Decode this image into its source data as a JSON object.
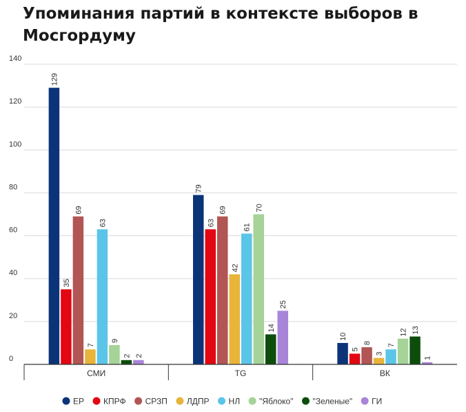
{
  "chart_data": {
    "type": "bar",
    "title": "Упоминания партий в контексте выборов в Мосгордуму",
    "xlabel": "",
    "ylabel": "",
    "ylim": [
      0,
      140
    ],
    "yticks": [
      "0",
      "20",
      "40",
      "60",
      "80",
      "100",
      "120",
      "140"
    ],
    "grid": true,
    "legend_position": "bottom",
    "categories": [
      "СМИ",
      "TG",
      "ВК"
    ],
    "series": [
      {
        "name": "ЕР",
        "color": "#0b3478",
        "values": [
          129,
          79,
          10
        ]
      },
      {
        "name": "КПРФ",
        "color": "#e30613",
        "values": [
          35,
          63,
          5
        ]
      },
      {
        "name": "СРЗП",
        "color": "#b25555",
        "values": [
          69,
          69,
          8
        ]
      },
      {
        "name": "ЛДПР",
        "color": "#e8b53a",
        "values": [
          7,
          42,
          3
        ]
      },
      {
        "name": "НЛ",
        "color": "#5bc5e8",
        "values": [
          63,
          61,
          7
        ]
      },
      {
        "name": "\"Яблоко\"",
        "color": "#a5d398",
        "values": [
          9,
          70,
          12
        ]
      },
      {
        "name": "\"Зеленые\"",
        "color": "#0c4d0c",
        "values": [
          2,
          14,
          13
        ]
      },
      {
        "name": "ГИ",
        "color": "#a985d9",
        "values": [
          2,
          25,
          1
        ]
      }
    ]
  }
}
